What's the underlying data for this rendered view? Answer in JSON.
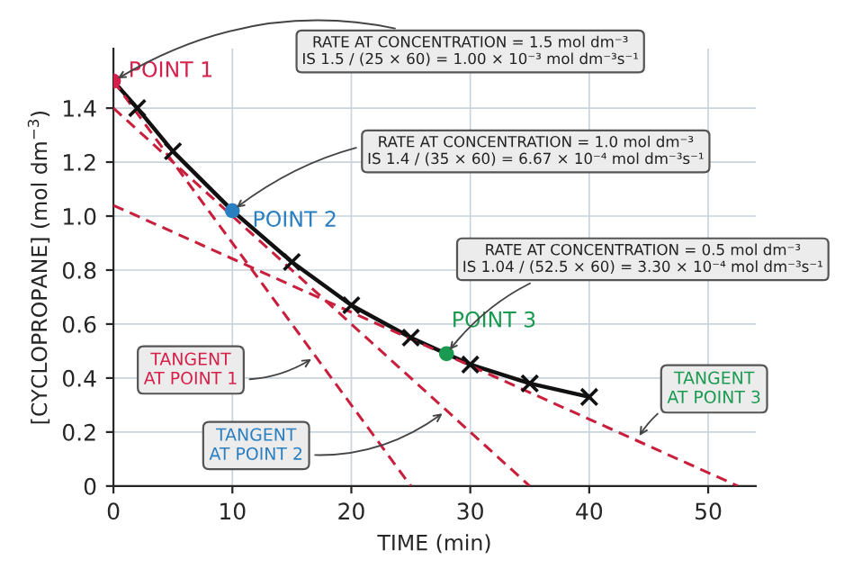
{
  "chart_data": {
    "type": "line",
    "xlabel": "TIME (min)",
    "ylabel": "[CYCLOPROPANE] (mol dm$^{−3}$)",
    "xlim": [
      0,
      54
    ],
    "ylim": [
      0,
      1.62
    ],
    "xticks": [
      0,
      10,
      20,
      30,
      40,
      50
    ],
    "yticks": [
      0,
      {
        "value": 0.2,
        "label": "0.2"
      },
      {
        "value": 0.4,
        "label": "0.4"
      },
      {
        "value": 0.6,
        "label": "0.6"
      },
      {
        "value": 0.8,
        "label": "0.8"
      },
      {
        "value": 1.0,
        "label": "1.0"
      },
      {
        "value": 1.2,
        "label": "1.2"
      },
      {
        "value": 1.4,
        "label": "1.4"
      }
    ],
    "grid": true,
    "legend": false,
    "series": [
      {
        "color": "#111111",
        "marker": "none",
        "line_style": "solid",
        "x": [
          0,
          2,
          5,
          10,
          15,
          20,
          25,
          28,
          30,
          35,
          40
        ],
        "values": [
          1.5,
          1.4,
          1.24,
          1.02,
          0.83,
          0.67,
          0.55,
          0.49,
          0.45,
          0.38,
          0.33
        ]
      },
      {
        "type": "scatter",
        "color": "#111111",
        "marker": "cross",
        "x": [
          2,
          5,
          15,
          20,
          25,
          30,
          35,
          40
        ],
        "values": [
          1.4,
          1.24,
          0.83,
          0.67,
          0.55,
          0.45,
          0.38,
          0.33
        ]
      },
      {
        "type": "line",
        "color": "#c8203c",
        "marker": "none",
        "line_style": "dashed",
        "x": [
          0,
          25
        ],
        "values": [
          1.5,
          0
        ]
      },
      {
        "type": "line",
        "color": "#c8203c",
        "marker": "none",
        "line_style": "dashed",
        "x": [
          0,
          35
        ],
        "values": [
          1.4,
          0
        ]
      },
      {
        "type": "line",
        "color": "#c8203c",
        "marker": "none",
        "line_style": "dashed",
        "x": [
          0,
          52.5
        ],
        "values": [
          1.04,
          0
        ]
      },
      {
        "type": "scatter",
        "name": "POINT 1",
        "color": "#d6204a",
        "marker": "circle",
        "x": [
          0
        ],
        "values": [
          1.5
        ]
      },
      {
        "type": "scatter",
        "name": "POINT 2",
        "color": "#2a7fc1",
        "marker": "circle",
        "x": [
          10
        ],
        "values": [
          1.02
        ]
      },
      {
        "type": "scatter",
        "name": "POINT 3",
        "color": "#1a9a50",
        "marker": "circle",
        "x": [
          28
        ],
        "values": [
          0.49
        ]
      }
    ],
    "annotations": [
      {
        "text": "RATE AT CONCENTRATION = 1.5 mol dm⁻³\nIS 1.5 / (25 × 60) = 1.00 × 10⁻³ mol dm⁻³s⁻¹",
        "x": 0,
        "y": 1.5
      },
      {
        "text": "RATE AT CONCENTRATION = 1.0 mol dm⁻³\nIS 1.4 / (35 × 60) = 6.67 × 10⁻⁴ mol dm⁻³s⁻¹",
        "x": 10,
        "y": 1.02
      },
      {
        "text": "RATE AT CONCENTRATION = 0.5 mol dm⁻³\nIS 1.04 / (52.5 × 60) = 3.30 × 10⁻⁴ mol dm⁻³s⁻¹",
        "x": 28,
        "y": 0.49
      },
      {
        "text": "TANGENT\nAT POINT 1",
        "x": 17,
        "y": 0.48
      },
      {
        "text": "TANGENT\nAT POINT 2",
        "x": 28,
        "y": 0.28
      },
      {
        "text": "TANGENT\nAT POINT 3",
        "x": 44,
        "y": 0.17
      }
    ]
  }
}
